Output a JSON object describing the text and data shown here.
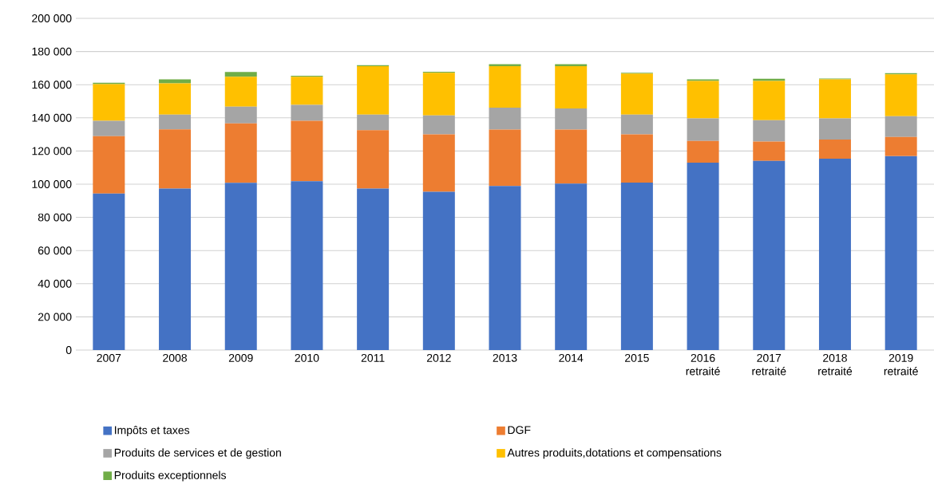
{
  "chart_data": {
    "type": "bar",
    "stacked": true,
    "categories": [
      "2007",
      "2008",
      "2009",
      "2010",
      "2011",
      "2012",
      "2013",
      "2014",
      "2015",
      "2016 retraité",
      "2017 retraité",
      "2018 retraité",
      "2019 retraité"
    ],
    "series": [
      {
        "name": "Impôts et taxes",
        "color": "#4472c4",
        "values": [
          94400,
          97300,
          100800,
          101800,
          97300,
          95400,
          98900,
          100300,
          101000,
          113000,
          114000,
          115400,
          117000
        ]
      },
      {
        "name": "DGF",
        "color": "#ed7d31",
        "values": [
          34600,
          35700,
          35800,
          36400,
          35300,
          34600,
          34000,
          32600,
          29000,
          13100,
          11700,
          11500,
          11500
        ]
      },
      {
        "name": "Produits de services et de gestion",
        "color": "#a5a5a5",
        "values": [
          9200,
          9000,
          10100,
          9600,
          9400,
          11500,
          13300,
          12800,
          12000,
          13500,
          12900,
          12700,
          12500
        ]
      },
      {
        "name": "Autres produits,dotations et compensations",
        "color": "#ffc000",
        "values": [
          22100,
          18800,
          18100,
          17000,
          29200,
          25700,
          25000,
          25500,
          24700,
          22600,
          23600,
          23600,
          25200
        ]
      },
      {
        "name": "Produits exceptionnels",
        "color": "#70ad47",
        "values": [
          900,
          2400,
          2900,
          600,
          600,
          600,
          1100,
          1100,
          500,
          1000,
          1400,
          500,
          700
        ]
      }
    ],
    "ylim": [
      0,
      200000
    ],
    "yticks": [
      {
        "value": 0,
        "label": "0"
      },
      {
        "value": 20000,
        "label": "20 000"
      },
      {
        "value": 40000,
        "label": "40 000"
      },
      {
        "value": 60000,
        "label": "60 000"
      },
      {
        "value": 80000,
        "label": "80 000"
      },
      {
        "value": 100000,
        "label": "100 000"
      },
      {
        "value": 120000,
        "label": "120 000"
      },
      {
        "value": 140000,
        "label": "140 000"
      },
      {
        "value": 160000,
        "label": "160 000"
      },
      {
        "value": 180000,
        "label": "180 000"
      },
      {
        "value": 200000,
        "label": "200 000"
      }
    ],
    "grid": "y",
    "legend": "bottom"
  }
}
